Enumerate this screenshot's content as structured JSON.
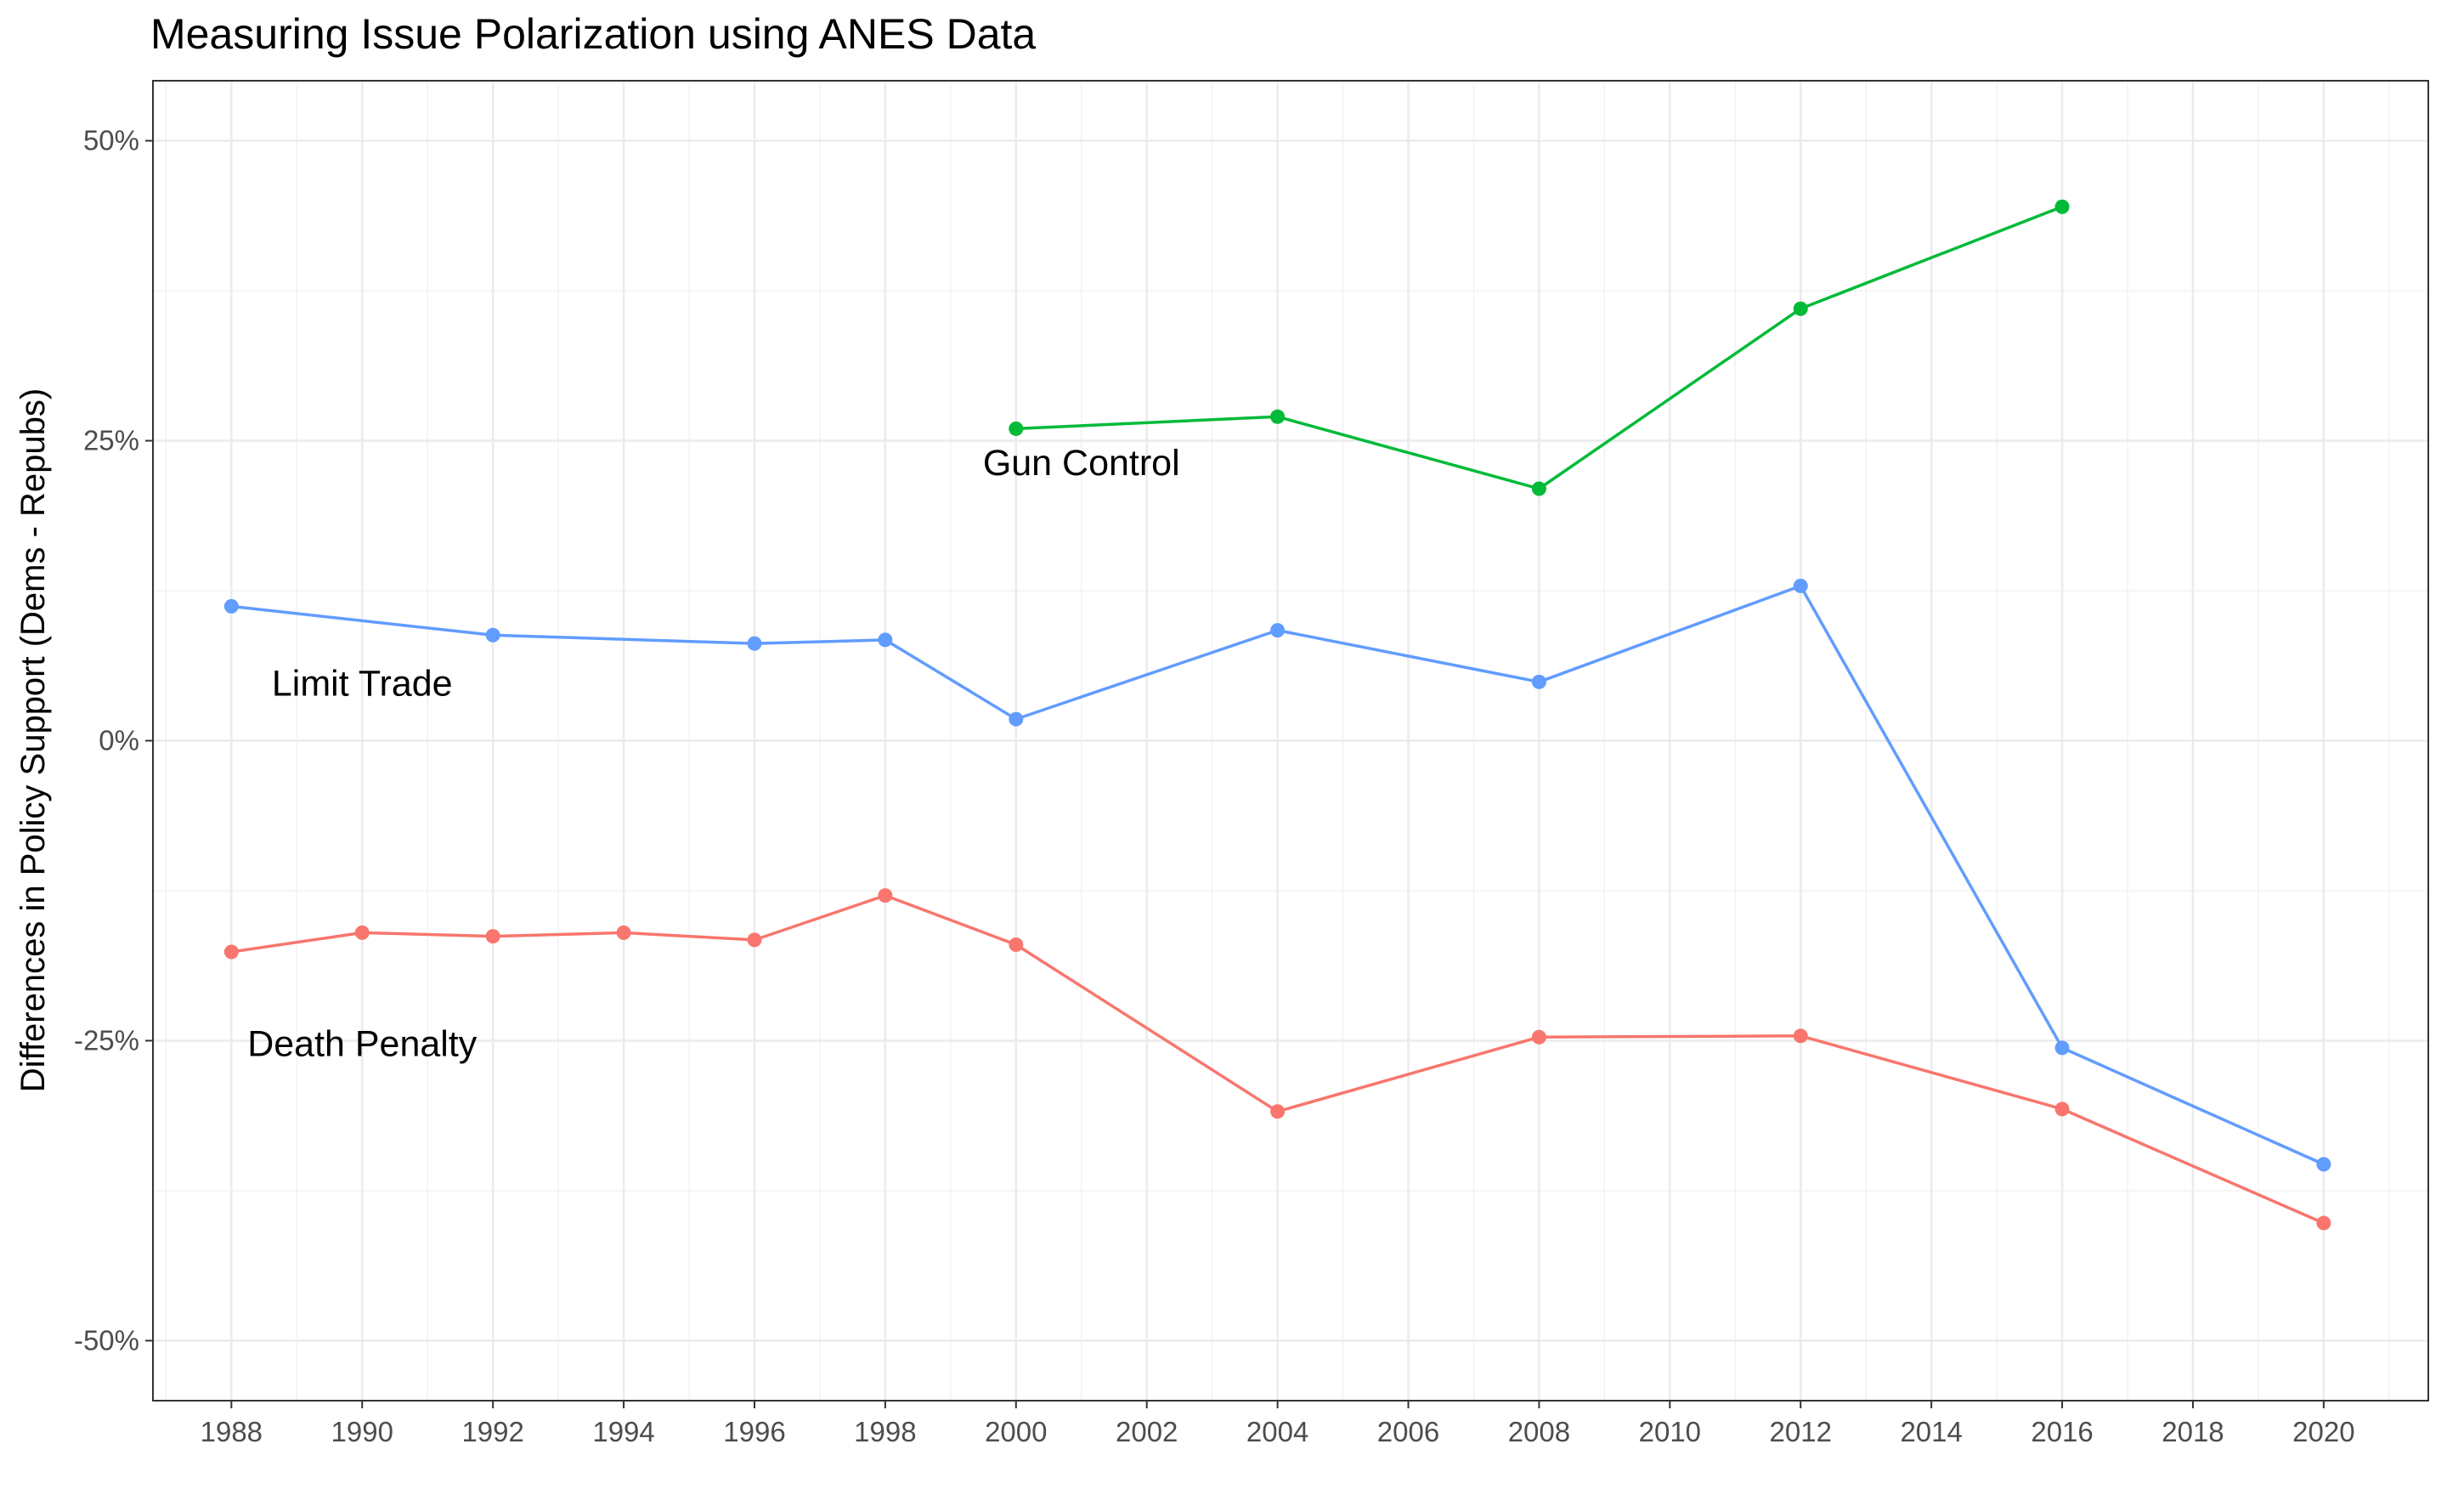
{
  "chart_data": {
    "type": "line",
    "title": "Measuring Issue Polarization using ANES Data",
    "xlabel": "",
    "ylabel": "Differences in Policy Support (Dems - Repubs)",
    "xlim": [
      1986.8,
      2021.6
    ],
    "ylim": [
      -55,
      55
    ],
    "x_ticks": [
      1988,
      1990,
      1992,
      1994,
      1996,
      1998,
      2000,
      2002,
      2004,
      2006,
      2008,
      2010,
      2012,
      2014,
      2016,
      2018,
      2020
    ],
    "x_tick_labels": [
      "1988",
      "1990",
      "1992",
      "1994",
      "1996",
      "1998",
      "2000",
      "2002",
      "2004",
      "2006",
      "2008",
      "2010",
      "2012",
      "2014",
      "2016",
      "2018",
      "2020"
    ],
    "y_ticks": [
      50,
      25,
      0,
      -25,
      -50
    ],
    "y_tick_labels": [
      "50%",
      "25%",
      "0%",
      "-25%",
      "-50%"
    ],
    "grid": true,
    "legend": "none",
    "series": [
      {
        "name": "Gun Control",
        "color": "#00ba38",
        "x": [
          2000,
          2004,
          2008,
          2012,
          2016
        ],
        "values": [
          26.0,
          27.0,
          21.0,
          36.0,
          44.5
        ],
        "label_anchor": [
          2001,
          23.2
        ]
      },
      {
        "name": "Limit Trade",
        "color": "#619cff",
        "x": [
          1988,
          1992,
          1996,
          1998,
          2000,
          2004,
          2008,
          2012,
          2016,
          2020
        ],
        "values": [
          11.2,
          8.8,
          8.1,
          8.4,
          1.8,
          9.2,
          4.9,
          12.9,
          -25.6,
          -35.3
        ],
        "label_anchor": [
          1990,
          4.8
        ]
      },
      {
        "name": "Death Penalty",
        "color": "#f8766d",
        "x": [
          1988,
          1990,
          1992,
          1994,
          1996,
          1998,
          2000,
          2004,
          2008,
          2012,
          2016,
          2020
        ],
        "values": [
          -17.6,
          -16.0,
          -16.3,
          -16.0,
          -16.6,
          -12.9,
          -17.0,
          -30.9,
          -24.7,
          -24.6,
          -30.7,
          -40.2
        ],
        "label_anchor": [
          1990,
          -25.2
        ]
      }
    ]
  }
}
